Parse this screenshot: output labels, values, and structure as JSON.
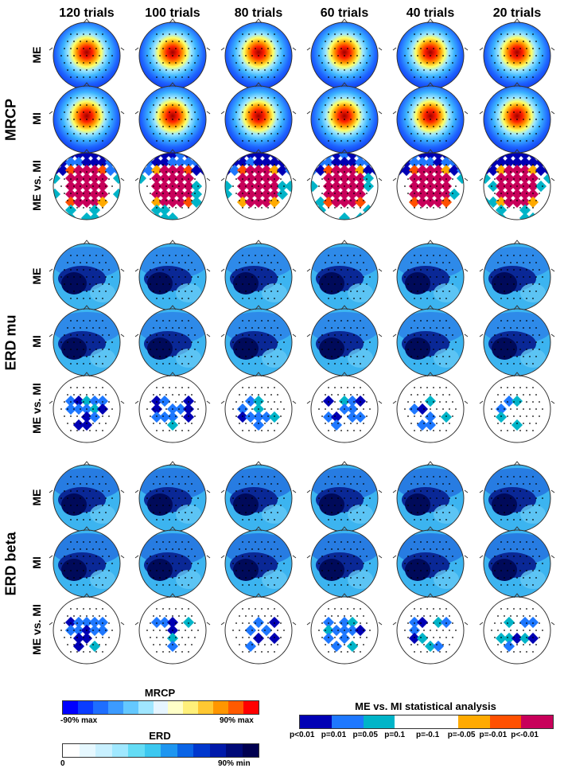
{
  "columns": [
    "120 trials",
    "100 trials",
    "80 trials",
    "60 trials",
    "40 trials",
    "20 trials"
  ],
  "groups": [
    {
      "label": "MRCP",
      "rows": [
        "ME",
        "MI",
        "ME vs. MI"
      ],
      "types": [
        "mrcp",
        "mrcp",
        "stat"
      ]
    },
    {
      "label": "ERD mu",
      "rows": [
        "ME",
        "MI",
        "ME vs. MI"
      ],
      "types": [
        "erd",
        "erd",
        "stat"
      ]
    },
    {
      "label": "ERD beta",
      "rows": [
        "ME",
        "MI",
        "ME vs. MI"
      ],
      "types": [
        "erd",
        "erd",
        "stat"
      ]
    }
  ],
  "legends": {
    "mrcp": {
      "title": "MRCP",
      "min_label": "-90% max",
      "max_label": "90% max",
      "colors": [
        "#0000ff",
        "#0a3cff",
        "#1e6eff",
        "#3c9bff",
        "#64c8ff",
        "#a0e6ff",
        "#e6f5ff",
        "#ffffc8",
        "#fff07a",
        "#ffc832",
        "#ff9600",
        "#ff5a00",
        "#ff0000"
      ]
    },
    "erd": {
      "title": "ERD",
      "min_label": "0",
      "max_label": "90% min",
      "colors": [
        "#ffffff",
        "#e6f8ff",
        "#c8f0ff",
        "#a0e8ff",
        "#64dcf5",
        "#3cc8f0",
        "#1e96f0",
        "#0a64e6",
        "#0037cd",
        "#0019aa",
        "#000a78",
        "#000050"
      ]
    },
    "stat": {
      "title": "ME vs. MI statistical analysis",
      "colors": [
        "#0000b4",
        "#1e78ff",
        "#00b4c8",
        "#ffffff",
        "#ffffff",
        "#ffaa00",
        "#ff5000",
        "#c8005a"
      ],
      "labels": [
        "p<0.01",
        "p=0.01",
        "p=0.05",
        "p=0.1",
        "p=-0.1",
        "p=-0.05",
        "p=-0.01",
        "p<-0.01"
      ]
    }
  }
}
